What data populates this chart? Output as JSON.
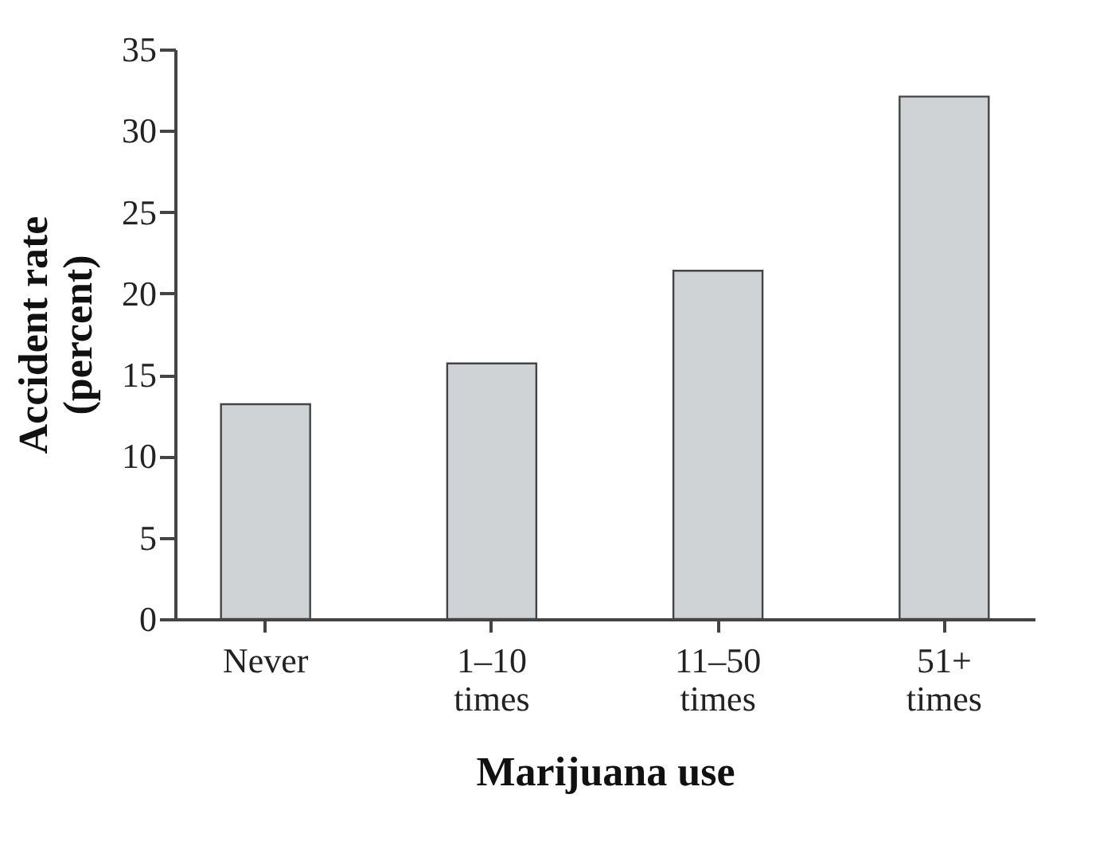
{
  "chart_data": {
    "type": "bar",
    "xlabel": "Marijuana use",
    "ylabel": "Accident rate (percent)",
    "categories": [
      "Never",
      "1–10 times",
      "11–50 times",
      "51+ times"
    ],
    "values": [
      13.2,
      15.7,
      21.4,
      32.1
    ],
    "color": "#d0d3d6",
    "ylim": [
      0,
      35
    ],
    "yticks": [
      0,
      5,
      10,
      15,
      20,
      25,
      30,
      35
    ],
    "grid": false
  }
}
